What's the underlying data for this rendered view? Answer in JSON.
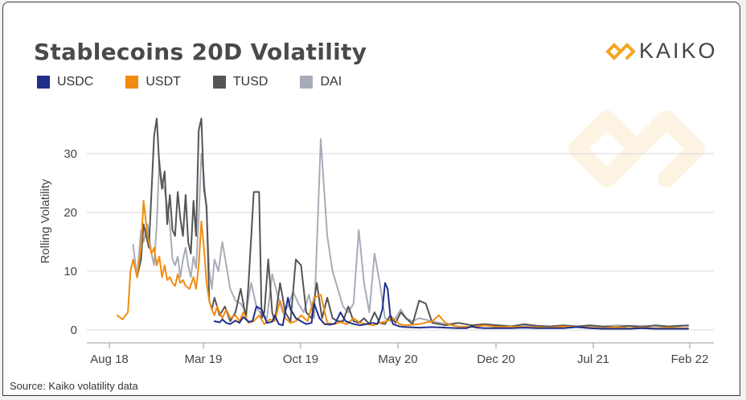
{
  "chart_data": {
    "type": "line",
    "title": "Stablecoins 20D Volatility",
    "ylabel": "Rolling Volatility",
    "xlabel": "",
    "ylim": [
      0,
      37
    ],
    "y_ticks": [
      0,
      10,
      20,
      30
    ],
    "x_ticks": [
      "Aug 18",
      "Mar 19",
      "Oct 19",
      "May 20",
      "Dec 20",
      "Jul 21",
      "Feb 22"
    ],
    "grid": "horizontal",
    "legend_position": "top-left",
    "source": "Source: Kaiko volatility data",
    "series": [
      {
        "name": "USDC",
        "color": "#1f2f8a",
        "x": [
          7.4,
          7.8,
          8.0,
          8.3,
          8.6,
          9.0,
          9.3,
          9.6,
          10.0,
          10.3,
          10.6,
          11.0,
          11.4,
          11.8,
          12.0,
          12.3,
          12.6,
          13.0,
          13.2,
          13.6,
          14.0,
          14.4,
          14.8,
          15.0,
          15.4,
          15.8,
          16.2,
          16.6,
          17.0,
          17.4,
          18.0,
          18.5,
          19.0,
          19.5,
          19.8,
          20.0,
          20.2,
          20.4,
          20.6,
          20.8,
          21.0,
          21.5,
          22.0,
          23.0,
          24.0,
          25.0,
          26.0,
          26.6,
          27.0,
          27.4,
          28.0,
          29.0,
          30.0,
          31.0,
          32.0,
          33.0,
          34.0,
          35.0,
          36.0,
          37.0,
          38.0,
          39.0,
          40.0,
          41.0,
          42.0,
          43.0,
          43.5
        ],
        "y": [
          1.5,
          1.3,
          1.8,
          1.2,
          1.0,
          1.6,
          1.2,
          2.2,
          1.4,
          1.5,
          4.0,
          3.5,
          1.2,
          1.4,
          2.5,
          1.0,
          0.8,
          5.5,
          3.5,
          2.0,
          1.5,
          1.0,
          1.2,
          4.5,
          2.0,
          1.0,
          0.9,
          1.1,
          3.0,
          1.5,
          1.0,
          0.8,
          1.0,
          1.2,
          1.0,
          2.0,
          3.5,
          8.0,
          7.0,
          2.5,
          1.0,
          0.6,
          0.5,
          0.4,
          0.5,
          0.4,
          0.3,
          0.3,
          0.6,
          0.4,
          0.3,
          0.3,
          0.3,
          0.4,
          0.3,
          0.3,
          0.3,
          0.5,
          0.3,
          0.2,
          0.2,
          0.2,
          0.3,
          0.2,
          0.2,
          0.2,
          0.2
        ]
      },
      {
        "name": "USDT",
        "color": "#f28c10",
        "x": [
          0.0,
          0.4,
          0.8,
          1.0,
          1.2,
          1.5,
          1.8,
          2.0,
          2.3,
          2.6,
          2.8,
          3.0,
          3.2,
          3.4,
          3.6,
          3.8,
          4.0,
          4.2,
          4.4,
          4.6,
          4.8,
          5.0,
          5.2,
          5.5,
          5.8,
          6.0,
          6.2,
          6.4,
          6.6,
          6.8,
          7.0,
          7.2,
          7.4,
          7.6,
          8.0,
          8.3,
          8.6,
          9.0,
          9.3,
          9.6,
          10.0,
          10.4,
          10.8,
          11.2,
          11.6,
          12.0,
          12.4,
          12.8,
          13.2,
          13.6,
          14.0,
          14.5,
          15.0,
          15.5,
          16.0,
          16.5,
          17.0,
          17.5,
          18.0,
          18.5,
          19.0,
          19.5,
          20.0,
          20.5,
          21.0,
          21.5,
          22.0,
          23.0,
          24.0,
          24.5,
          25.0,
          25.5,
          26.0,
          27.0,
          28.0,
          29.0,
          30.0,
          31.0,
          32.0,
          33.0,
          34.0,
          35.0,
          36.0,
          37.0,
          38.0,
          39.0,
          40.0,
          41.0,
          42.0,
          43.0,
          43.5
        ],
        "y": [
          2.5,
          1.8,
          3.0,
          10.0,
          12.0,
          9.0,
          14.0,
          22.0,
          16.0,
          13.0,
          14.0,
          11.0,
          12.5,
          9.0,
          11.0,
          8.5,
          9.0,
          8.0,
          7.5,
          9.5,
          8.0,
          8.5,
          7.5,
          7.0,
          9.0,
          7.0,
          11.0,
          18.5,
          14.0,
          8.0,
          5.0,
          3.5,
          2.5,
          4.0,
          2.0,
          3.5,
          2.0,
          2.5,
          1.5,
          3.0,
          1.2,
          1.5,
          2.5,
          1.0,
          1.8,
          1.5,
          5.0,
          2.0,
          1.2,
          1.5,
          2.5,
          1.5,
          5.5,
          6.0,
          1.2,
          1.0,
          1.3,
          1.0,
          2.0,
          1.2,
          1.0,
          0.8,
          1.2,
          1.5,
          2.0,
          1.0,
          0.8,
          1.0,
          1.5,
          2.5,
          1.2,
          0.8,
          0.6,
          0.5,
          0.8,
          0.5,
          0.6,
          0.5,
          0.5,
          0.4,
          0.6,
          0.5,
          0.4,
          0.3,
          0.5,
          0.3,
          0.4,
          0.3,
          0.4,
          0.3,
          0.3
        ]
      },
      {
        "name": "TUSD",
        "color": "#555555",
        "x": [
          1.5,
          1.8,
          2.0,
          2.4,
          2.8,
          3.0,
          3.2,
          3.4,
          3.6,
          3.8,
          4.0,
          4.2,
          4.4,
          4.6,
          4.8,
          5.0,
          5.2,
          5.4,
          5.6,
          5.8,
          6.0,
          6.2,
          6.4,
          6.6,
          6.8,
          7.0,
          7.2,
          7.4,
          7.8,
          8.2,
          8.6,
          9.0,
          9.4,
          9.8,
          10.0,
          10.4,
          10.8,
          11.0,
          11.2,
          11.5,
          11.8,
          12.0,
          12.4,
          12.8,
          13.2,
          13.6,
          14.0,
          14.4,
          14.8,
          15.2,
          15.6,
          16.0,
          16.4,
          16.8,
          17.2,
          17.6,
          18.0,
          18.4,
          18.8,
          19.2,
          19.6,
          20.0,
          20.4,
          20.8,
          21.2,
          21.6,
          22.0,
          22.5,
          23.0,
          23.5,
          24.0,
          24.5,
          25.0,
          26.0,
          27.0,
          28.0,
          29.0,
          30.0,
          31.0,
          32.0,
          33.0,
          34.0,
          35.0,
          36.0,
          37.0,
          38.0,
          39.0,
          40.0,
          41.0,
          42.0,
          43.0,
          43.5
        ],
        "y": [
          9.0,
          12.0,
          18.0,
          14.0,
          33.0,
          36.0,
          28.0,
          24.0,
          27.0,
          18.0,
          23.0,
          17.0,
          16.0,
          23.5,
          19.0,
          16.0,
          23.0,
          15.0,
          13.0,
          22.0,
          16.0,
          34.0,
          36.0,
          24.0,
          21.0,
          5.0,
          3.5,
          5.5,
          2.5,
          4.0,
          1.5,
          3.0,
          7.0,
          2.0,
          8.0,
          23.5,
          23.5,
          2.0,
          3.0,
          12.0,
          3.0,
          1.5,
          8.0,
          3.0,
          1.5,
          12.0,
          11.0,
          3.0,
          2.0,
          8.0,
          2.0,
          5.5,
          2.0,
          1.5,
          1.5,
          4.0,
          1.5,
          1.2,
          2.0,
          1.0,
          3.0,
          1.2,
          1.0,
          2.5,
          1.2,
          3.0,
          2.0,
          1.0,
          5.0,
          4.5,
          1.2,
          1.0,
          0.8,
          1.2,
          0.8,
          1.0,
          0.8,
          0.6,
          1.0,
          0.7,
          0.6,
          0.8,
          0.6,
          0.8,
          0.6,
          0.5,
          0.7,
          0.5,
          0.8,
          0.6,
          0.7,
          0.8
        ]
      },
      {
        "name": "DAI",
        "color": "#a7acb8",
        "x": [
          1.2,
          1.5,
          1.8,
          2.0,
          2.3,
          2.6,
          2.8,
          3.0,
          3.2,
          3.4,
          3.6,
          3.8,
          4.0,
          4.2,
          4.4,
          4.6,
          4.8,
          5.0,
          5.2,
          5.4,
          5.6,
          5.8,
          6.0,
          6.2,
          6.4,
          6.6,
          6.8,
          7.0,
          7.2,
          7.4,
          7.7,
          8.0,
          8.3,
          8.6,
          9.0,
          9.4,
          9.8,
          10.2,
          10.6,
          11.0,
          11.4,
          11.8,
          12.2,
          12.6,
          13.0,
          13.4,
          13.8,
          14.2,
          14.6,
          15.0,
          15.5,
          16.0,
          16.4,
          16.8,
          17.2,
          17.6,
          18.0,
          18.4,
          18.8,
          19.2,
          19.6,
          20.0,
          20.4,
          20.8,
          21.2,
          21.6,
          22.0,
          22.5,
          23.0,
          24.0,
          25.0,
          26.0,
          27.0,
          28.0,
          29.0,
          30.0,
          31.0,
          32.0,
          33.0,
          34.0,
          35.0,
          36.0,
          37.0,
          38.0,
          39.0,
          40.0,
          41.0,
          42.0,
          43.0,
          43.5
        ],
        "y": [
          14.5,
          9.0,
          17.0,
          15.0,
          18.0,
          13.0,
          11.0,
          18.0,
          29.0,
          25.0,
          24.0,
          21.0,
          18.0,
          12.0,
          11.0,
          12.5,
          9.0,
          12.0,
          14.0,
          11.0,
          9.0,
          12.5,
          10.5,
          19.0,
          30.0,
          26.0,
          20.0,
          10.0,
          7.0,
          12.0,
          10.0,
          15.0,
          11.0,
          7.0,
          5.0,
          4.5,
          3.0,
          8.0,
          4.0,
          2.5,
          2.0,
          9.5,
          6.0,
          3.0,
          4.0,
          6.5,
          4.5,
          3.0,
          6.0,
          2.0,
          32.5,
          16.0,
          10.0,
          7.0,
          4.0,
          3.0,
          4.5,
          17.0,
          8.0,
          3.0,
          13.0,
          8.0,
          2.0,
          1.5,
          2.0,
          3.5,
          2.0,
          1.5,
          2.0,
          1.5,
          1.0,
          1.2,
          0.8,
          1.0,
          0.8,
          0.7,
          0.8,
          0.7,
          0.6,
          0.8,
          0.6,
          0.7,
          0.6,
          0.8,
          0.7,
          0.7,
          0.7,
          0.6,
          0.8,
          0.7
        ]
      }
    ]
  },
  "logo": {
    "text": "KAIKO",
    "color": "#f5a623"
  }
}
